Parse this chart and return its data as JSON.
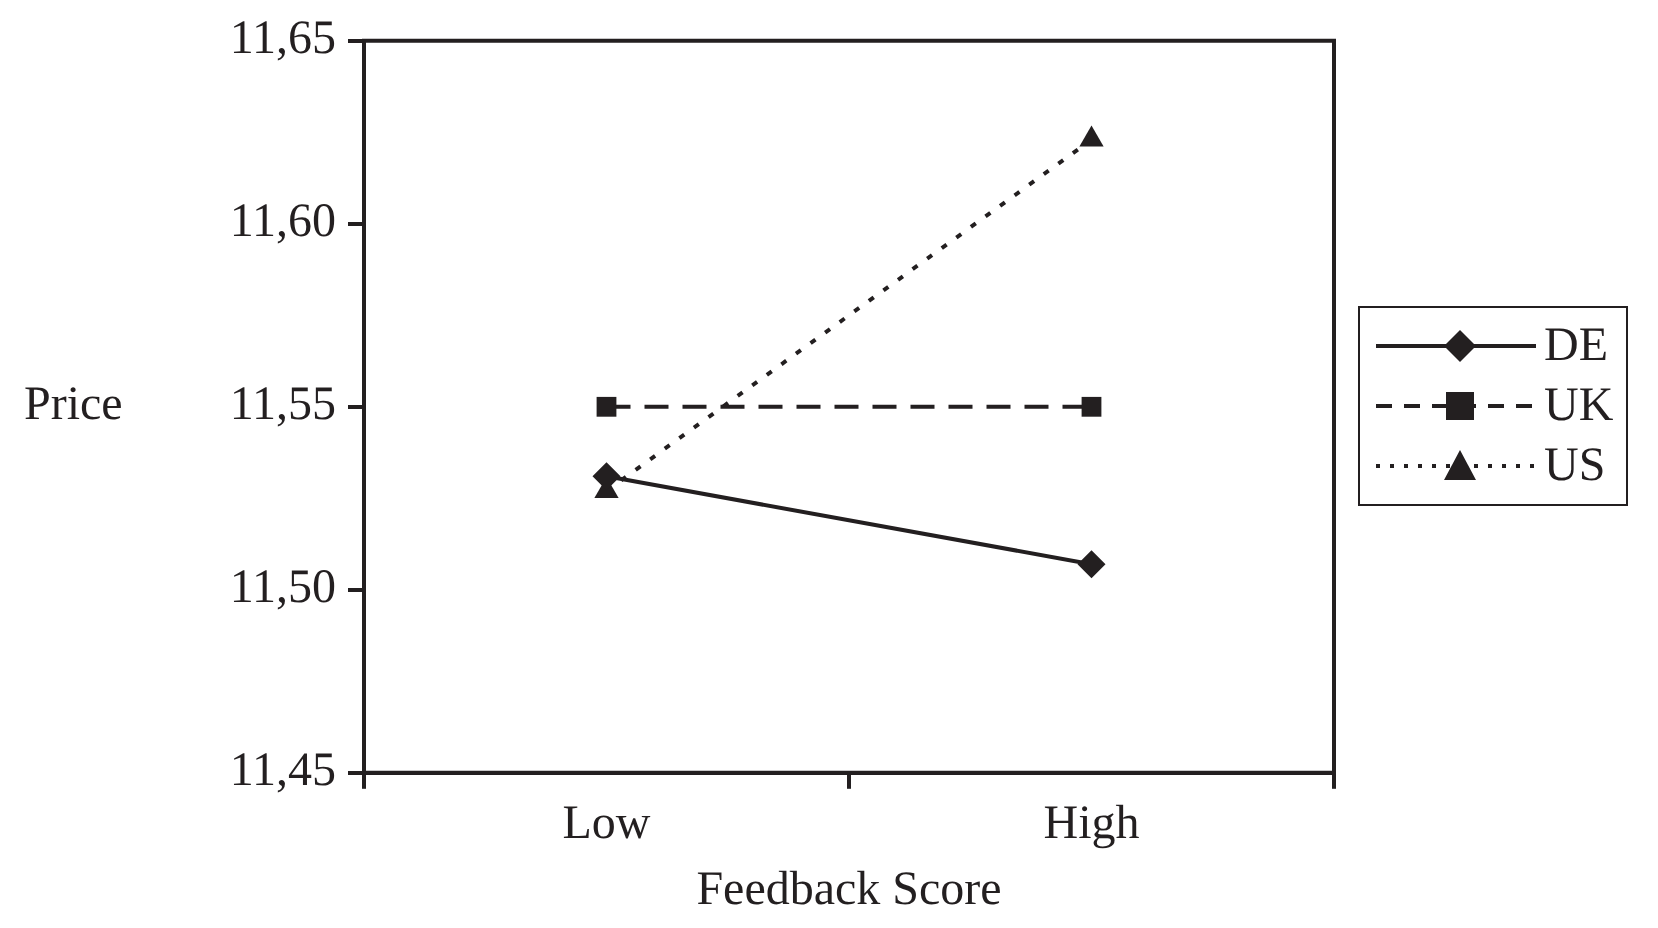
{
  "chart_data": {
    "type": "line",
    "xlabel": "Feedback Score",
    "ylabel": "Price",
    "categories": [
      "Low",
      "High"
    ],
    "series": [
      {
        "name": "DE",
        "color": "#231f20",
        "values": [
          11.531,
          11.507
        ],
        "marker": "diamond",
        "line_style": "solid"
      },
      {
        "name": "UK",
        "color": "#231f20",
        "values": [
          11.55,
          11.55
        ],
        "marker": "square",
        "line_style": "dashed"
      },
      {
        "name": "US",
        "color": "#231f20",
        "values": [
          11.527,
          11.623
        ],
        "marker": "triangle",
        "line_style": "dotted"
      }
    ],
    "ylim": [
      11.45,
      11.65
    ],
    "yticks": [
      {
        "value": 11.45,
        "label": "11,45"
      },
      {
        "value": 11.5,
        "label": "11,50"
      },
      {
        "value": 11.55,
        "label": "11,55"
      },
      {
        "value": 11.6,
        "label": "11,60"
      },
      {
        "value": 11.65,
        "label": "11,65"
      }
    ],
    "grid": false,
    "legend": "right"
  }
}
